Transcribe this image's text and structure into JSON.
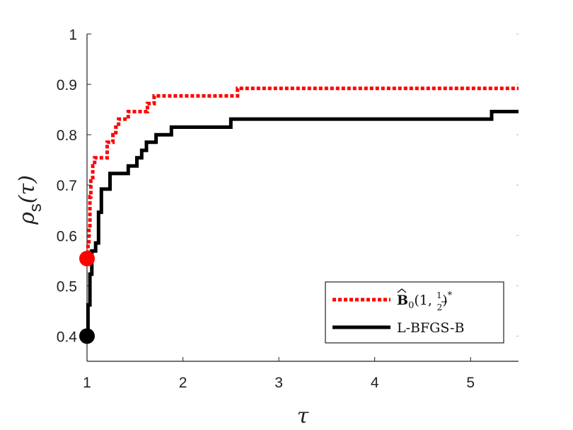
{
  "chart_data": {
    "type": "line",
    "xlabel": "τ",
    "ylabel": {
      "main": "ρ",
      "subscript": "s",
      "arg": "(τ)"
    },
    "xlim": [
      1,
      5.5
    ],
    "ylim": [
      0.35,
      1.0
    ],
    "x_ticks": [
      1,
      2,
      3,
      4,
      5
    ],
    "y_ticks": [
      0.4,
      0.5,
      0.6,
      0.7,
      0.8,
      0.9,
      1
    ],
    "x_tick_labels": [
      "1",
      "2",
      "3",
      "4",
      "5"
    ],
    "y_tick_labels": [
      "0.4",
      "0.5",
      "0.6",
      "0.7",
      "0.8",
      "0.9",
      "1"
    ],
    "grid": false,
    "legend_position": "bottom-right",
    "series": [
      {
        "name": "B̂₀(1, ½)*",
        "legend_main": "B",
        "legend_sub": "0",
        "legend_args": "(1, ",
        "legend_frac_num": "1",
        "legend_frac_den": "2",
        "legend_close": ")",
        "legend_sup": "*",
        "style": "dotted",
        "color": "#ff0000",
        "start_marker": {
          "x": 1,
          "y": 0.554
        },
        "points": [
          [
            1.0,
            0.554
          ],
          [
            1.01,
            0.584
          ],
          [
            1.02,
            0.615
          ],
          [
            1.03,
            0.677
          ],
          [
            1.04,
            0.708
          ],
          [
            1.06,
            0.738
          ],
          [
            1.08,
            0.754
          ],
          [
            1.18,
            0.754
          ],
          [
            1.21,
            0.785
          ],
          [
            1.27,
            0.8
          ],
          [
            1.3,
            0.815
          ],
          [
            1.33,
            0.831
          ],
          [
            1.43,
            0.846
          ],
          [
            1.55,
            0.846
          ],
          [
            1.63,
            0.862
          ],
          [
            1.7,
            0.877
          ],
          [
            2.57,
            0.877
          ],
          [
            2.57,
            0.892
          ],
          [
            5.5,
            0.892
          ]
        ]
      },
      {
        "name": "L-BFGS-B",
        "style": "solid",
        "color": "#000000",
        "start_marker": {
          "x": 1,
          "y": 0.4
        },
        "points": [
          [
            1.0,
            0.4
          ],
          [
            1.01,
            0.462
          ],
          [
            1.03,
            0.523
          ],
          [
            1.05,
            0.569
          ],
          [
            1.09,
            0.585
          ],
          [
            1.12,
            0.646
          ],
          [
            1.15,
            0.692
          ],
          [
            1.24,
            0.723
          ],
          [
            1.43,
            0.738
          ],
          [
            1.52,
            0.754
          ],
          [
            1.57,
            0.769
          ],
          [
            1.62,
            0.785
          ],
          [
            1.72,
            0.8
          ],
          [
            1.88,
            0.815
          ],
          [
            2.5,
            0.831
          ],
          [
            5.22,
            0.846
          ],
          [
            5.5,
            0.846
          ]
        ]
      }
    ]
  }
}
